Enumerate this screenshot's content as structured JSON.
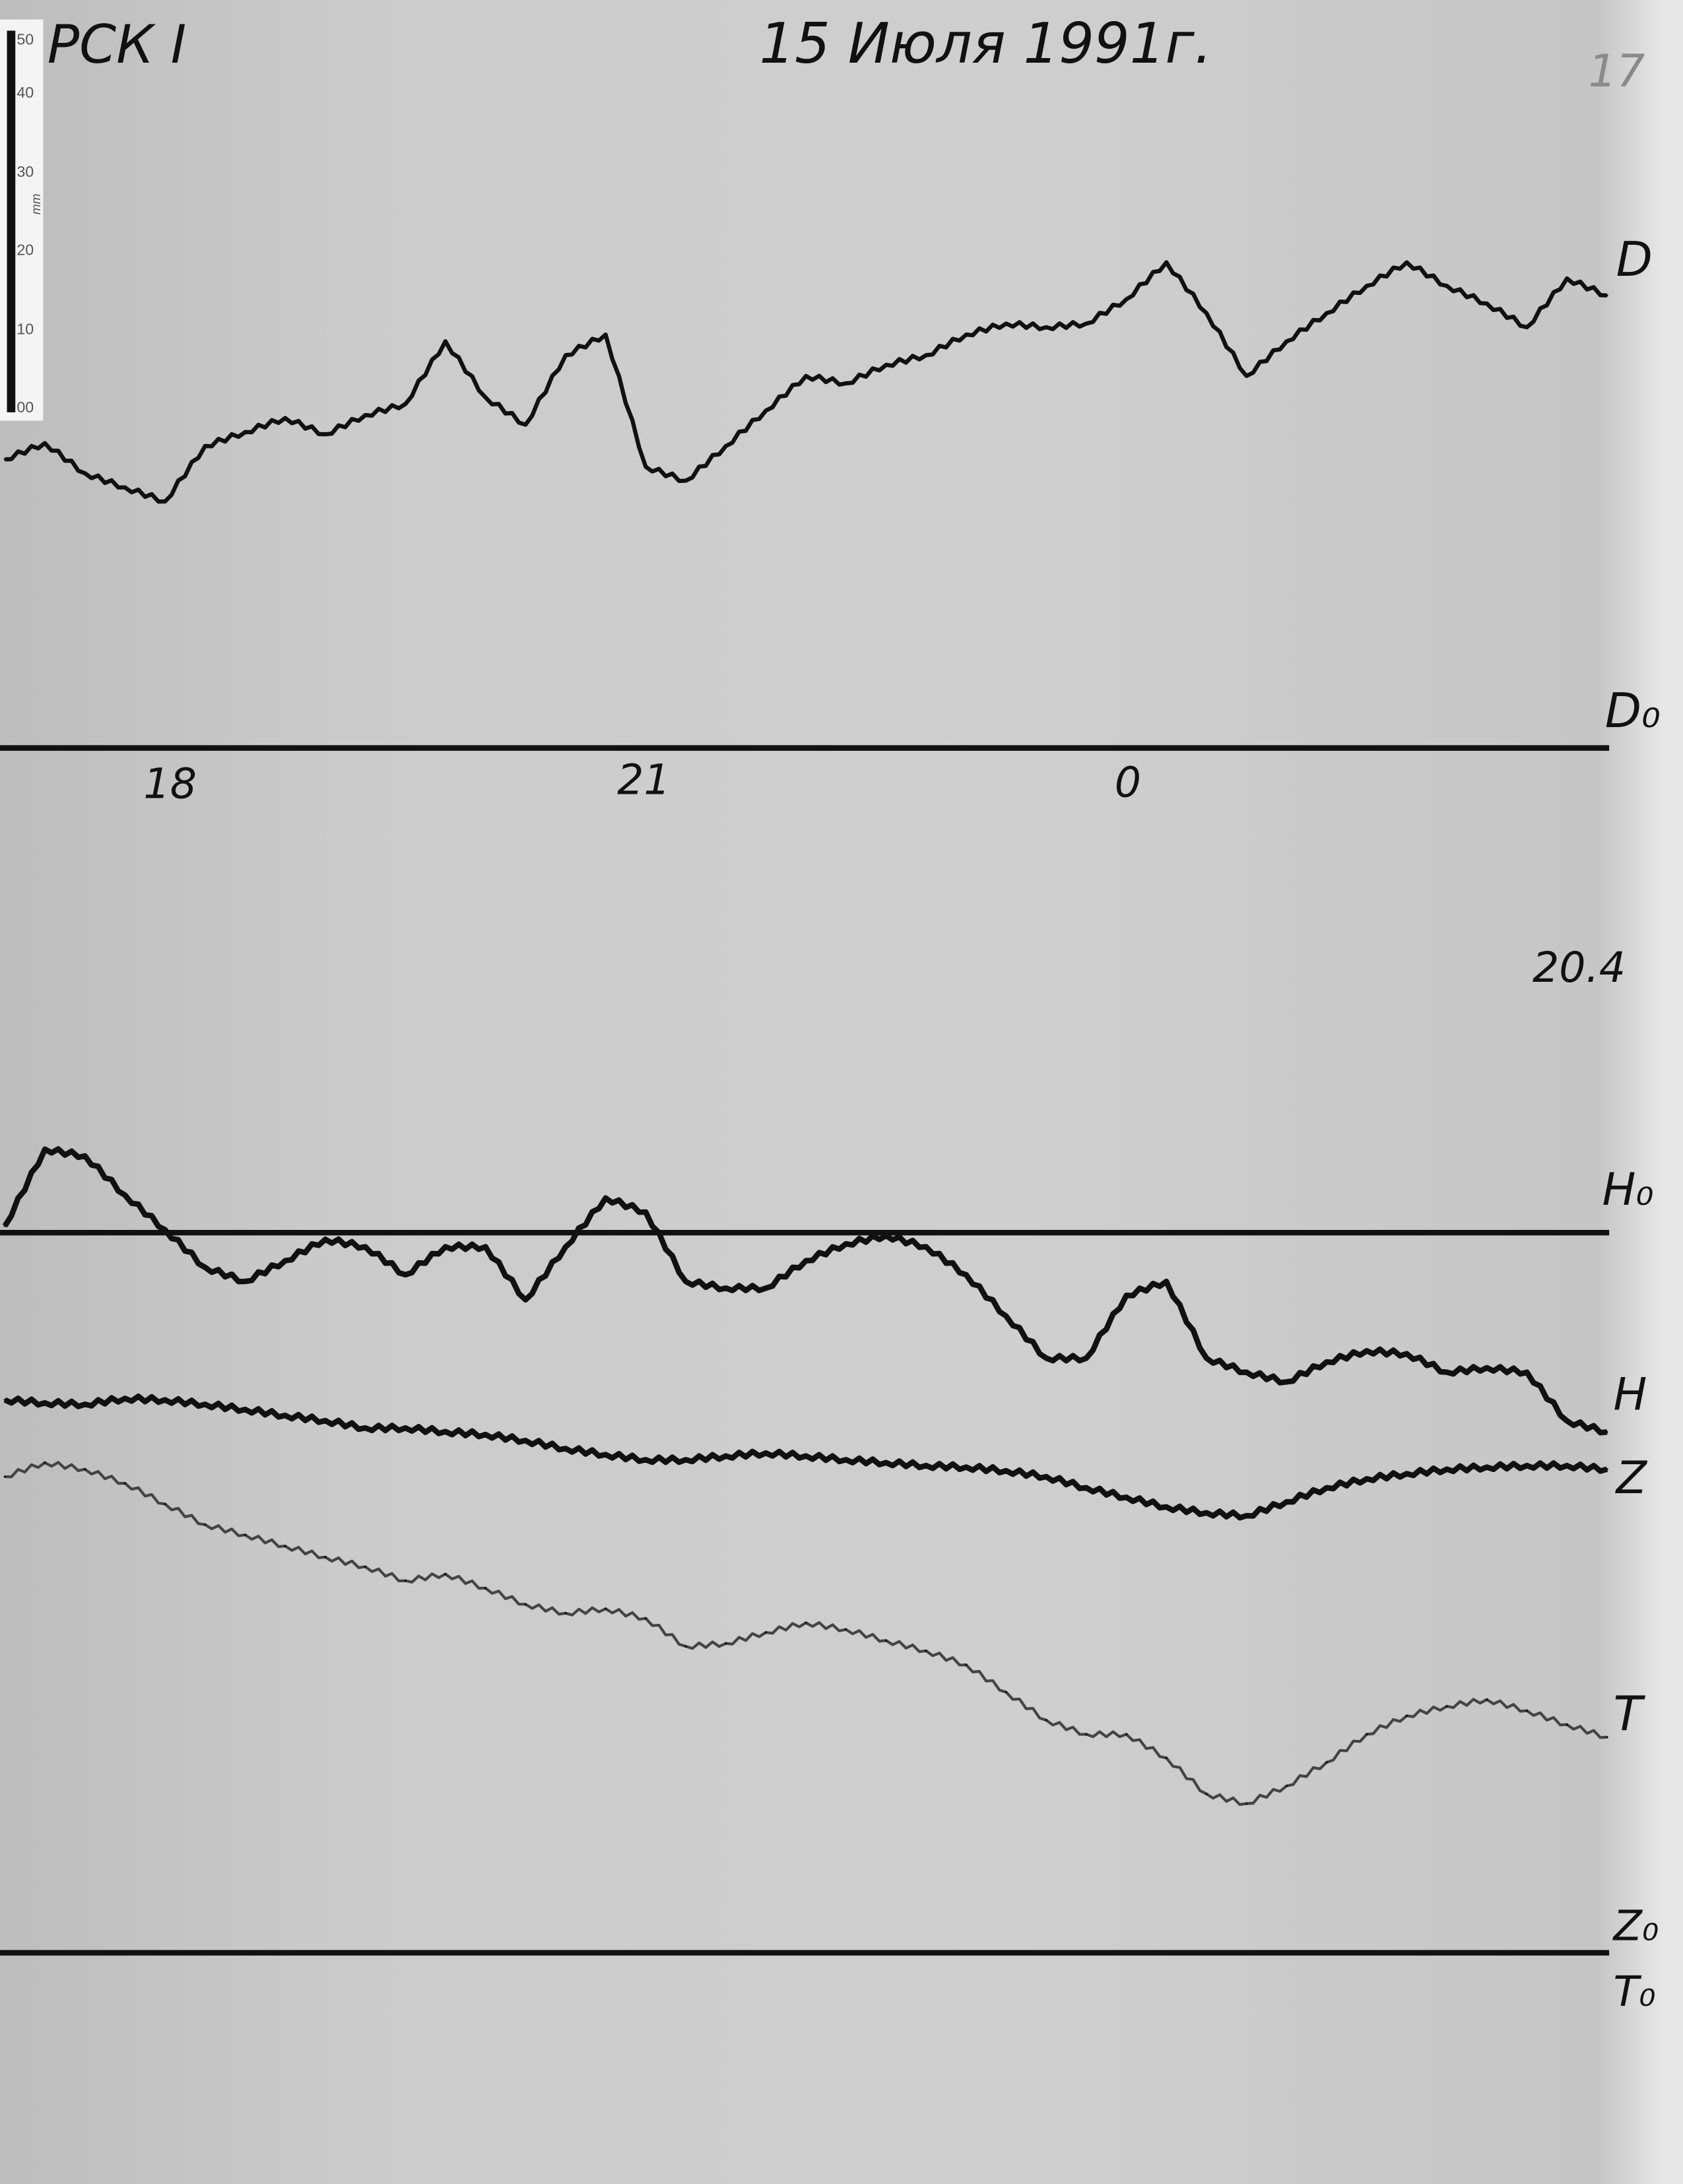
{
  "header": {
    "station": "РСК I",
    "date": "15 Июля 1991г.",
    "sheet_number": "17"
  },
  "scale_bar": {
    "unit": "mm",
    "ticks": [
      "50",
      "40",
      "30",
      "20",
      "10",
      "00"
    ]
  },
  "annotations": {
    "scale_value": "20.4"
  },
  "chart_data": {
    "type": "line",
    "xlabel": "",
    "ylabel": "",
    "x_tick_labels": [
      "18",
      "21",
      "0"
    ],
    "x_ticks_hours": [
      18,
      21,
      0
    ],
    "grid": false,
    "baselines": [
      {
        "name": "D₀",
        "series": "D"
      },
      {
        "name": "H₀",
        "series": "H"
      },
      {
        "name": "Z₀",
        "series": "Z"
      },
      {
        "name": "T₀",
        "series": "T"
      }
    ],
    "y_unit": "mm (deflection from baseline)",
    "x": [
      "17:00",
      "17:15",
      "17:30",
      "17:45",
      "18:00",
      "18:15",
      "18:30",
      "18:45",
      "19:00",
      "19:15",
      "19:30",
      "19:45",
      "20:00",
      "20:15",
      "20:30",
      "20:45",
      "21:00",
      "21:15",
      "21:30",
      "21:45",
      "22:00",
      "22:15",
      "22:30",
      "22:45",
      "23:00",
      "23:15",
      "23:30",
      "23:45",
      "00:00",
      "00:15",
      "00:30",
      "00:45",
      "01:00",
      "01:15",
      "01:30",
      "01:45",
      "02:00",
      "02:15",
      "02:30",
      "02:45",
      "03:00"
    ],
    "series": [
      {
        "name": "D",
        "baseline": "D₀",
        "values": [
          39.1,
          41.3,
          37.2,
          35.3,
          33.4,
          40.9,
          42.8,
          44.7,
          42.5,
          45.1,
          46.6,
          55.1,
          47.5,
          43.8,
          53.2,
          56.0,
          38.1,
          36.2,
          40.9,
          45.7,
          50.4,
          49.4,
          51.9,
          53.2,
          56.0,
          57.5,
          57.0,
          57.5,
          60.8,
          65.8,
          58.9,
          50.4,
          55.1,
          58.9,
          62.6,
          65.8,
          62.6,
          60.2,
          57.0,
          63.6,
          61.3
        ]
      },
      {
        "name": "H",
        "baseline": "H₀",
        "values": [
          0.9,
          11.3,
          10.4,
          5.1,
          0.4,
          -4.7,
          -6.6,
          -3.8,
          -0.9,
          -1.9,
          -5.7,
          -1.9,
          -1.9,
          -9.1,
          -1.9,
          4.7,
          2.8,
          -6.6,
          -7.5,
          -7.5,
          -3.8,
          -1.5,
          -0.4,
          -1.9,
          -5.7,
          -11.3,
          -17.0,
          -17.0,
          -8.5,
          -6.6,
          -17.0,
          -18.9,
          -20.2,
          -17.5,
          -16.0,
          -16.4,
          -18.9,
          -18.3,
          -18.9,
          -25.5,
          -27.0
        ]
      },
      {
        "name": "Z",
        "baseline": "Z₀",
        "values": [
          74.9,
          74.5,
          74.3,
          75.1,
          74.9,
          74.3,
          73.6,
          72.8,
          72.1,
          71.1,
          71.1,
          70.6,
          70.2,
          69.4,
          68.3,
          67.5,
          66.8,
          66.8,
          67.3,
          67.7,
          67.3,
          66.8,
          66.4,
          66.0,
          65.8,
          65.3,
          64.5,
          63.0,
          61.7,
          60.4,
          59.6,
          59.2,
          61.1,
          63.0,
          64.2,
          64.9,
          65.5,
          65.8,
          66.0,
          66.0,
          65.5
        ]
      },
      {
        "name": "T",
        "baseline": "T₀",
        "values": [
          64.5,
          66.4,
          65.5,
          63.6,
          60.8,
          58.0,
          56.6,
          55.1,
          53.6,
          52.3,
          50.4,
          51.3,
          49.4,
          47.2,
          46.0,
          46.6,
          45.3,
          41.5,
          41.9,
          43.4,
          44.7,
          43.8,
          42.3,
          40.9,
          39.0,
          35.3,
          31.5,
          29.6,
          29.6,
          26.4,
          21.5,
          20.2,
          22.6,
          25.8,
          29.6,
          32.1,
          33.4,
          34.3,
          32.8,
          30.9,
          29.2
        ]
      }
    ],
    "colors": {
      "paper": "#c9c9c9",
      "trace": "#111111",
      "t_trace": "#444444"
    }
  }
}
